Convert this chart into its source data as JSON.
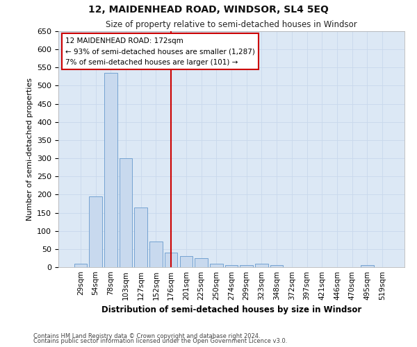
{
  "title": "12, MAIDENHEAD ROAD, WINDSOR, SL4 5EQ",
  "subtitle": "Size of property relative to semi-detached houses in Windsor",
  "xlabel": "Distribution of semi-detached houses by size in Windsor",
  "ylabel": "Number of semi-detached properties",
  "categories": [
    "29sqm",
    "54sqm",
    "78sqm",
    "103sqm",
    "127sqm",
    "152sqm",
    "176sqm",
    "201sqm",
    "225sqm",
    "250sqm",
    "274sqm",
    "299sqm",
    "323sqm",
    "348sqm",
    "372sqm",
    "397sqm",
    "421sqm",
    "446sqm",
    "470sqm",
    "495sqm",
    "519sqm"
  ],
  "values": [
    10,
    195,
    535,
    300,
    165,
    70,
    40,
    30,
    25,
    10,
    5,
    5,
    10,
    5,
    0,
    0,
    0,
    0,
    0,
    5,
    0
  ],
  "bar_color": "#c8d9ee",
  "bar_edge_color": "#6699cc",
  "highlight_index": 6,
  "highlight_color": "#cc0000",
  "ylim": [
    0,
    650
  ],
  "yticks": [
    0,
    50,
    100,
    150,
    200,
    250,
    300,
    350,
    400,
    450,
    500,
    550,
    600,
    650
  ],
  "annotation_text": "12 MAIDENHEAD ROAD: 172sqm\n← 93% of semi-detached houses are smaller (1,287)\n7% of semi-detached houses are larger (101) →",
  "annotation_box_color": "#ffffff",
  "annotation_box_edge": "#cc0000",
  "grid_color": "#c8d8ec",
  "background_color": "#dce8f5",
  "fig_background": "#ffffff",
  "footer_line1": "Contains HM Land Registry data © Crown copyright and database right 2024.",
  "footer_line2": "Contains public sector information licensed under the Open Government Licence v3.0."
}
